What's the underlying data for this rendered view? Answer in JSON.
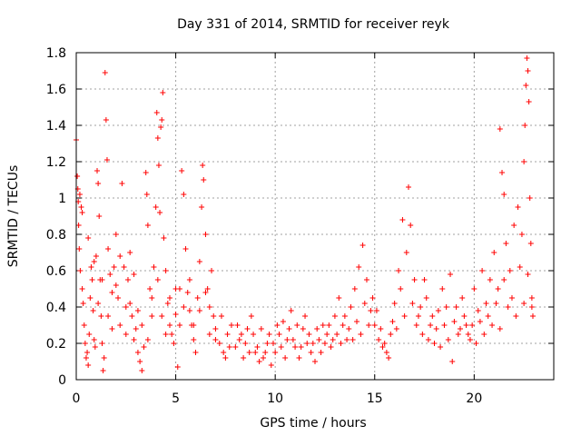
{
  "chart_data": {
    "type": "scatter",
    "title": "Day 331 of 2014, SRMTID for receiver reyk",
    "xlabel": "GPS time / hours",
    "ylabel": "SRMTID / TECUs",
    "xlim": [
      0,
      24
    ],
    "ylim": [
      0,
      1.8
    ],
    "x_ticks": [
      0,
      5,
      10,
      15,
      20
    ],
    "x_tick_labels": [
      "0",
      "5",
      "10",
      "15",
      "20"
    ],
    "y_ticks": [
      0,
      0.2,
      0.4,
      0.6,
      0.8,
      1,
      1.2,
      1.4,
      1.6,
      1.8
    ],
    "y_tick_labels": [
      "0",
      "0.2",
      "0.4",
      "0.6",
      "0.8",
      "1",
      "1.2",
      "1.4",
      "1.6",
      "1.8"
    ],
    "grid": true,
    "marker": "+",
    "marker_color": "#ff0000",
    "series": [
      {
        "name": "SRMTID",
        "points": [
          [
            0.0,
            1.32
          ],
          [
            0.05,
            1.12
          ],
          [
            0.08,
            1.05
          ],
          [
            0.1,
            0.98
          ],
          [
            0.12,
            0.85
          ],
          [
            0.15,
            0.72
          ],
          [
            0.18,
            1.02
          ],
          [
            0.2,
            0.6
          ],
          [
            0.25,
            0.95
          ],
          [
            0.3,
            0.5
          ],
          [
            0.35,
            0.42
          ],
          [
            0.4,
            0.3
          ],
          [
            0.45,
            0.2
          ],
          [
            0.5,
            0.12
          ],
          [
            0.55,
            0.15
          ],
          [
            0.6,
            0.08
          ],
          [
            0.65,
            0.25
          ],
          [
            0.7,
            0.45
          ],
          [
            0.75,
            0.62
          ],
          [
            0.8,
            0.55
          ],
          [
            0.85,
            0.38
          ],
          [
            0.9,
            0.22
          ],
          [
            0.95,
            0.18
          ],
          [
            1.0,
            0.68
          ],
          [
            1.05,
            1.15
          ],
          [
            1.1,
            1.08
          ],
          [
            1.15,
            0.9
          ],
          [
            1.2,
            0.55
          ],
          [
            1.25,
            0.35
          ],
          [
            1.3,
            0.2
          ],
          [
            1.35,
            0.05
          ],
          [
            1.4,
            0.12
          ],
          [
            1.45,
            1.69
          ],
          [
            1.5,
            1.43
          ],
          [
            1.55,
            1.21
          ],
          [
            1.6,
            0.72
          ],
          [
            1.7,
            0.58
          ],
          [
            1.8,
            0.48
          ],
          [
            1.9,
            0.62
          ],
          [
            2.0,
            0.8
          ],
          [
            2.1,
            0.45
          ],
          [
            2.2,
            0.3
          ],
          [
            2.3,
            1.08
          ],
          [
            2.4,
            0.62
          ],
          [
            2.5,
            0.4
          ],
          [
            2.6,
            0.55
          ],
          [
            2.7,
            0.7
          ],
          [
            2.8,
            0.35
          ],
          [
            2.9,
            0.22
          ],
          [
            3.0,
            0.28
          ],
          [
            3.1,
            0.15
          ],
          [
            3.2,
            0.1
          ],
          [
            3.3,
            0.05
          ],
          [
            3.4,
            0.18
          ],
          [
            3.5,
            1.14
          ],
          [
            3.55,
            1.02
          ],
          [
            3.6,
            0.85
          ],
          [
            3.7,
            0.5
          ],
          [
            3.8,
            0.35
          ],
          [
            3.9,
            0.62
          ],
          [
            4.0,
            0.95
          ],
          [
            4.05,
            1.47
          ],
          [
            4.1,
            1.33
          ],
          [
            4.15,
            1.18
          ],
          [
            4.2,
            0.92
          ],
          [
            4.25,
            1.39
          ],
          [
            4.3,
            1.43
          ],
          [
            4.35,
            1.58
          ],
          [
            4.4,
            0.78
          ],
          [
            4.5,
            0.6
          ],
          [
            4.6,
            0.42
          ],
          [
            4.7,
            0.3
          ],
          [
            4.8,
            0.25
          ],
          [
            4.9,
            0.2
          ],
          [
            5.0,
            0.36
          ],
          [
            5.1,
            0.07
          ],
          [
            5.2,
            0.5
          ],
          [
            5.3,
            1.15
          ],
          [
            5.4,
            1.02
          ],
          [
            5.5,
            0.72
          ],
          [
            5.6,
            0.48
          ],
          [
            5.7,
            0.38
          ],
          [
            5.8,
            0.3
          ],
          [
            5.9,
            0.22
          ],
          [
            6.0,
            0.15
          ],
          [
            6.1,
            0.45
          ],
          [
            6.2,
            0.65
          ],
          [
            6.3,
            0.95
          ],
          [
            6.35,
            1.18
          ],
          [
            6.4,
            1.1
          ],
          [
            6.5,
            0.8
          ],
          [
            6.6,
            0.5
          ],
          [
            6.7,
            0.4
          ],
          [
            6.8,
            0.6
          ],
          [
            6.9,
            0.35
          ],
          [
            7.0,
            0.28
          ],
          [
            7.2,
            0.2
          ],
          [
            7.4,
            0.15
          ],
          [
            7.6,
            0.25
          ],
          [
            7.8,
            0.3
          ],
          [
            8.0,
            0.18
          ],
          [
            8.2,
            0.22
          ],
          [
            8.4,
            0.12
          ],
          [
            8.6,
            0.28
          ],
          [
            8.8,
            0.35
          ],
          [
            9.0,
            0.15
          ],
          [
            9.2,
            0.1
          ],
          [
            9.4,
            0.12
          ],
          [
            9.6,
            0.2
          ],
          [
            9.8,
            0.08
          ],
          [
            10.0,
            0.15
          ],
          [
            10.2,
            0.25
          ],
          [
            10.4,
            0.32
          ],
          [
            10.6,
            0.22
          ],
          [
            10.8,
            0.38
          ],
          [
            11.0,
            0.18
          ],
          [
            11.2,
            0.12
          ],
          [
            11.4,
            0.28
          ],
          [
            11.6,
            0.2
          ],
          [
            11.8,
            0.15
          ],
          [
            12.0,
            0.1
          ],
          [
            12.2,
            0.22
          ],
          [
            12.4,
            0.3
          ],
          [
            12.6,
            0.25
          ],
          [
            12.8,
            0.18
          ],
          [
            13.0,
            0.35
          ],
          [
            13.2,
            0.45
          ],
          [
            13.4,
            0.3
          ],
          [
            13.6,
            0.22
          ],
          [
            13.8,
            0.4
          ],
          [
            14.0,
            0.5
          ],
          [
            14.2,
            0.62
          ],
          [
            14.4,
            0.74
          ],
          [
            14.6,
            0.55
          ],
          [
            14.8,
            0.38
          ],
          [
            15.0,
            0.3
          ],
          [
            15.2,
            0.22
          ],
          [
            15.4,
            0.18
          ],
          [
            15.6,
            0.15
          ],
          [
            15.8,
            0.25
          ],
          [
            16.0,
            0.42
          ],
          [
            16.2,
            0.6
          ],
          [
            16.4,
            0.88
          ],
          [
            16.6,
            0.7
          ],
          [
            16.7,
            1.06
          ],
          [
            16.8,
            0.85
          ],
          [
            17.0,
            0.55
          ],
          [
            17.2,
            0.35
          ],
          [
            17.4,
            0.25
          ],
          [
            17.6,
            0.45
          ],
          [
            17.8,
            0.3
          ],
          [
            18.0,
            0.2
          ],
          [
            18.2,
            0.38
          ],
          [
            18.4,
            0.5
          ],
          [
            18.6,
            0.4
          ],
          [
            18.8,
            0.58
          ],
          [
            19.0,
            0.32
          ],
          [
            19.2,
            0.25
          ],
          [
            19.4,
            0.45
          ],
          [
            19.6,
            0.3
          ],
          [
            19.8,
            0.22
          ],
          [
            20.0,
            0.5
          ],
          [
            20.2,
            0.38
          ],
          [
            20.4,
            0.6
          ],
          [
            20.6,
            0.42
          ],
          [
            20.8,
            0.55
          ],
          [
            21.0,
            0.7
          ],
          [
            21.2,
            0.5
          ],
          [
            21.3,
            1.38
          ],
          [
            21.4,
            1.14
          ],
          [
            21.5,
            1.02
          ],
          [
            21.6,
            0.75
          ],
          [
            21.8,
            0.6
          ],
          [
            22.0,
            0.85
          ],
          [
            22.2,
            0.95
          ],
          [
            22.4,
            0.8
          ],
          [
            22.5,
            1.2
          ],
          [
            22.55,
            1.4
          ],
          [
            22.6,
            1.62
          ],
          [
            22.65,
            1.77
          ],
          [
            22.7,
            1.7
          ],
          [
            22.75,
            1.53
          ],
          [
            22.8,
            1.0
          ],
          [
            22.85,
            0.75
          ],
          [
            22.9,
            0.45
          ],
          [
            22.95,
            0.35
          ],
          [
            0.3,
            0.92
          ],
          [
            0.6,
            0.78
          ],
          [
            0.9,
            0.65
          ],
          [
            1.1,
            0.42
          ],
          [
            1.3,
            0.55
          ],
          [
            1.6,
            0.35
          ],
          [
            1.8,
            0.28
          ],
          [
            2.0,
            0.52
          ],
          [
            2.2,
            0.68
          ],
          [
            2.5,
            0.25
          ],
          [
            2.7,
            0.42
          ],
          [
            2.9,
            0.58
          ],
          [
            3.1,
            0.38
          ],
          [
            3.3,
            0.3
          ],
          [
            3.6,
            0.22
          ],
          [
            3.8,
            0.45
          ],
          [
            4.1,
            0.55
          ],
          [
            4.3,
            0.35
          ],
          [
            4.5,
            0.25
          ],
          [
            4.7,
            0.45
          ],
          [
            5.0,
            0.5
          ],
          [
            5.2,
            0.3
          ],
          [
            5.4,
            0.4
          ],
          [
            5.7,
            0.55
          ],
          [
            5.9,
            0.3
          ],
          [
            6.2,
            0.38
          ],
          [
            6.5,
            0.48
          ],
          [
            6.7,
            0.25
          ],
          [
            7.0,
            0.22
          ],
          [
            7.3,
            0.35
          ],
          [
            7.5,
            0.12
          ],
          [
            7.7,
            0.18
          ],
          [
            8.1,
            0.3
          ],
          [
            8.3,
            0.25
          ],
          [
            8.5,
            0.2
          ],
          [
            8.7,
            0.15
          ],
          [
            8.9,
            0.25
          ],
          [
            9.1,
            0.18
          ],
          [
            9.3,
            0.28
          ],
          [
            9.5,
            0.15
          ],
          [
            9.7,
            0.25
          ],
          [
            9.9,
            0.2
          ],
          [
            10.1,
            0.3
          ],
          [
            10.3,
            0.18
          ],
          [
            10.5,
            0.12
          ],
          [
            10.7,
            0.28
          ],
          [
            10.9,
            0.22
          ],
          [
            11.1,
            0.3
          ],
          [
            11.3,
            0.18
          ],
          [
            11.5,
            0.35
          ],
          [
            11.7,
            0.25
          ],
          [
            11.9,
            0.2
          ],
          [
            12.1,
            0.28
          ],
          [
            12.3,
            0.15
          ],
          [
            12.5,
            0.2
          ],
          [
            12.7,
            0.3
          ],
          [
            12.9,
            0.22
          ],
          [
            13.1,
            0.25
          ],
          [
            13.3,
            0.2
          ],
          [
            13.5,
            0.35
          ],
          [
            13.7,
            0.28
          ],
          [
            13.9,
            0.22
          ],
          [
            14.1,
            0.32
          ],
          [
            14.3,
            0.25
          ],
          [
            14.5,
            0.42
          ],
          [
            14.7,
            0.3
          ],
          [
            14.9,
            0.45
          ],
          [
            15.1,
            0.38
          ],
          [
            15.3,
            0.28
          ],
          [
            15.5,
            0.2
          ],
          [
            15.7,
            0.12
          ],
          [
            15.9,
            0.32
          ],
          [
            16.1,
            0.28
          ],
          [
            16.3,
            0.5
          ],
          [
            16.5,
            0.35
          ],
          [
            16.9,
            0.42
          ],
          [
            17.1,
            0.3
          ],
          [
            17.3,
            0.4
          ],
          [
            17.5,
            0.55
          ],
          [
            17.7,
            0.22
          ],
          [
            17.9,
            0.35
          ],
          [
            18.1,
            0.28
          ],
          [
            18.3,
            0.18
          ],
          [
            18.5,
            0.3
          ],
          [
            18.7,
            0.22
          ],
          [
            18.9,
            0.1
          ],
          [
            19.1,
            0.4
          ],
          [
            19.3,
            0.28
          ],
          [
            19.5,
            0.35
          ],
          [
            19.7,
            0.25
          ],
          [
            19.9,
            0.3
          ],
          [
            20.1,
            0.2
          ],
          [
            20.3,
            0.32
          ],
          [
            20.5,
            0.25
          ],
          [
            20.7,
            0.35
          ],
          [
            20.9,
            0.3
          ],
          [
            21.1,
            0.42
          ],
          [
            21.3,
            0.28
          ],
          [
            21.5,
            0.55
          ],
          [
            21.7,
            0.4
          ],
          [
            21.9,
            0.45
          ],
          [
            22.1,
            0.35
          ],
          [
            22.3,
            0.62
          ],
          [
            22.5,
            0.42
          ],
          [
            22.7,
            0.58
          ],
          [
            22.9,
            0.4
          ]
        ]
      }
    ]
  }
}
